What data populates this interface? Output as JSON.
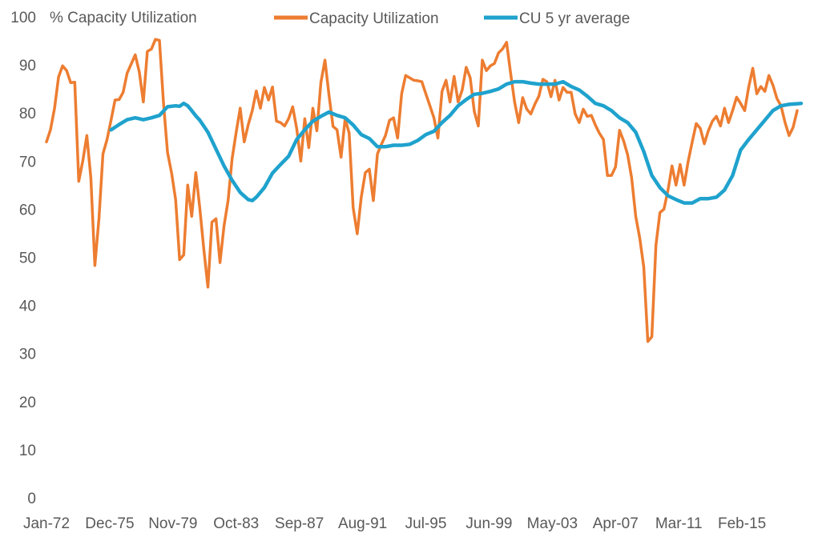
{
  "chart_data": {
    "type": "line",
    "title": "",
    "ylabel": "% Capacity Utilization",
    "xlabel": "",
    "ylim": [
      0,
      100
    ],
    "yticks": [
      0,
      10,
      20,
      30,
      40,
      50,
      60,
      70,
      80,
      90,
      100
    ],
    "xlim": [
      1972.0,
      2018.75
    ],
    "xticks": [
      {
        "label": "Jan-72",
        "x": 1972.0
      },
      {
        "label": "Dec-75",
        "x": 1975.917
      },
      {
        "label": "Nov-79",
        "x": 1979.833
      },
      {
        "label": "Oct-83",
        "x": 1983.75
      },
      {
        "label": "Sep-87",
        "x": 1987.667
      },
      {
        "label": "Aug-91",
        "x": 1991.583
      },
      {
        "label": "Jul-95",
        "x": 1995.5
      },
      {
        "label": "Jun-99",
        "x": 1999.417
      },
      {
        "label": "May-03",
        "x": 2003.333
      },
      {
        "label": "Apr-07",
        "x": 2007.25
      },
      {
        "label": "Mar-11",
        "x": 2011.167
      },
      {
        "label": "Feb-15",
        "x": 2015.083
      }
    ],
    "legend": "top",
    "series": [
      {
        "name": "Capacity Utilization",
        "color": "#ED7D31",
        "points": [
          [
            1972.0,
            74
          ],
          [
            1972.25,
            76.5
          ],
          [
            1972.5,
            81
          ],
          [
            1972.75,
            87.5
          ],
          [
            1973.0,
            89.8
          ],
          [
            1973.25,
            88.8
          ],
          [
            1973.5,
            86.3
          ],
          [
            1973.75,
            86.4
          ],
          [
            1974.0,
            65.8
          ],
          [
            1974.25,
            70
          ],
          [
            1974.5,
            75.3
          ],
          [
            1974.75,
            66.5
          ],
          [
            1975.0,
            48.3
          ],
          [
            1975.25,
            58
          ],
          [
            1975.5,
            71.5
          ],
          [
            1975.75,
            74.5
          ],
          [
            1976.0,
            78.5
          ],
          [
            1976.25,
            82.7
          ],
          [
            1976.5,
            82.8
          ],
          [
            1976.75,
            84.3
          ],
          [
            1977.0,
            88.3
          ],
          [
            1977.25,
            90.2
          ],
          [
            1977.5,
            92.1
          ],
          [
            1977.75,
            88.5
          ],
          [
            1978.0,
            82.3
          ],
          [
            1978.25,
            92.8
          ],
          [
            1978.5,
            93.3
          ],
          [
            1978.75,
            95.3
          ],
          [
            1979.0,
            95.1
          ],
          [
            1979.25,
            82
          ],
          [
            1979.5,
            71.8
          ],
          [
            1979.75,
            67.5
          ],
          [
            1980.0,
            62
          ],
          [
            1980.25,
            49.5
          ],
          [
            1980.5,
            50.5
          ],
          [
            1980.75,
            65
          ],
          [
            1981.0,
            58.5
          ],
          [
            1981.25,
            67.6
          ],
          [
            1981.5,
            60.2
          ],
          [
            1981.75,
            51.5
          ],
          [
            1982.0,
            43.8
          ],
          [
            1982.25,
            57.3
          ],
          [
            1982.5,
            58
          ],
          [
            1982.75,
            48.9
          ],
          [
            1983.0,
            56.5
          ],
          [
            1983.25,
            61.8
          ],
          [
            1983.5,
            70.5
          ],
          [
            1983.75,
            76
          ],
          [
            1984.0,
            81
          ],
          [
            1984.25,
            74
          ],
          [
            1984.5,
            77.6
          ],
          [
            1984.75,
            80.5
          ],
          [
            1985.0,
            84.6
          ],
          [
            1985.25,
            81
          ],
          [
            1985.5,
            85.3
          ],
          [
            1985.75,
            82.7
          ],
          [
            1986.0,
            85.4
          ],
          [
            1986.25,
            78.3
          ],
          [
            1986.5,
            78
          ],
          [
            1986.75,
            77.3
          ],
          [
            1987.0,
            78.8
          ],
          [
            1987.25,
            81.3
          ],
          [
            1987.5,
            76.8
          ],
          [
            1987.75,
            70
          ],
          [
            1988.0,
            78.8
          ],
          [
            1988.25,
            72.8
          ],
          [
            1988.5,
            81
          ],
          [
            1988.75,
            76.3
          ],
          [
            1989.0,
            86.3
          ],
          [
            1989.25,
            91
          ],
          [
            1989.5,
            83.8
          ],
          [
            1989.75,
            77.2
          ],
          [
            1990.0,
            76.5
          ],
          [
            1990.25,
            70.8
          ],
          [
            1990.5,
            78.8
          ],
          [
            1990.75,
            75.8
          ],
          [
            1991.0,
            60.3
          ],
          [
            1991.25,
            54.9
          ],
          [
            1991.5,
            62.5
          ],
          [
            1991.75,
            67.6
          ],
          [
            1992.0,
            68.3
          ],
          [
            1992.25,
            61.8
          ],
          [
            1992.5,
            71.5
          ],
          [
            1992.75,
            73.5
          ],
          [
            1993.0,
            75.3
          ],
          [
            1993.25,
            78.5
          ],
          [
            1993.5,
            79
          ],
          [
            1993.75,
            74.8
          ],
          [
            1994.0,
            84
          ],
          [
            1994.25,
            87.8
          ],
          [
            1994.5,
            87.3
          ],
          [
            1994.75,
            86.8
          ],
          [
            1995.0,
            86.7
          ],
          [
            1995.25,
            86.5
          ],
          [
            1995.5,
            84
          ],
          [
            1995.75,
            81.5
          ],
          [
            1996.0,
            79
          ],
          [
            1996.25,
            74.8
          ],
          [
            1996.5,
            84.5
          ],
          [
            1996.75,
            86.8
          ],
          [
            1997.0,
            82.3
          ],
          [
            1997.25,
            87.6
          ],
          [
            1997.5,
            82.3
          ],
          [
            1997.75,
            84.8
          ],
          [
            1998.0,
            89.5
          ],
          [
            1998.25,
            87.3
          ],
          [
            1998.5,
            80.3
          ],
          [
            1998.75,
            77.3
          ],
          [
            1999.0,
            91
          ],
          [
            1999.25,
            88.8
          ],
          [
            1999.5,
            89.8
          ],
          [
            1999.75,
            90.3
          ],
          [
            2000.0,
            92.5
          ],
          [
            2000.25,
            93.3
          ],
          [
            2000.5,
            94.7
          ],
          [
            2000.75,
            88.3
          ],
          [
            2001.0,
            82.3
          ],
          [
            2001.25,
            78
          ],
          [
            2001.5,
            83.2
          ],
          [
            2001.75,
            80.8
          ],
          [
            2002.0,
            79.8
          ],
          [
            2002.25,
            81.8
          ],
          [
            2002.5,
            83.5
          ],
          [
            2002.75,
            87
          ],
          [
            2003.0,
            86.5
          ],
          [
            2003.25,
            83.4
          ],
          [
            2003.5,
            86.8
          ],
          [
            2003.75,
            82.7
          ],
          [
            2004.0,
            85.3
          ],
          [
            2004.25,
            84.3
          ],
          [
            2004.5,
            84.3
          ],
          [
            2004.75,
            79.8
          ],
          [
            2005.0,
            78
          ],
          [
            2005.25,
            80.8
          ],
          [
            2005.5,
            79.3
          ],
          [
            2005.75,
            79.5
          ],
          [
            2006.0,
            77.5
          ],
          [
            2006.25,
            75.8
          ],
          [
            2006.5,
            74.5
          ],
          [
            2006.75,
            67
          ],
          [
            2007.0,
            67
          ],
          [
            2007.25,
            68.8
          ],
          [
            2007.5,
            76.4
          ],
          [
            2007.75,
            74.2
          ],
          [
            2008.0,
            71.3
          ],
          [
            2008.25,
            66.5
          ],
          [
            2008.5,
            58.5
          ],
          [
            2008.75,
            54
          ],
          [
            2009.0,
            48
          ],
          [
            2009.25,
            32.5
          ],
          [
            2009.5,
            33.5
          ],
          [
            2009.75,
            52.5
          ],
          [
            2010.0,
            59.3
          ],
          [
            2010.25,
            60
          ],
          [
            2010.5,
            64
          ],
          [
            2010.75,
            69
          ],
          [
            2011.0,
            65
          ],
          [
            2011.25,
            69.3
          ],
          [
            2011.5,
            65
          ],
          [
            2011.75,
            70
          ],
          [
            2012.0,
            74
          ],
          [
            2012.25,
            77.8
          ],
          [
            2012.5,
            76.8
          ],
          [
            2012.75,
            73.6
          ],
          [
            2013.0,
            76.3
          ],
          [
            2013.25,
            78.3
          ],
          [
            2013.5,
            79.3
          ],
          [
            2013.75,
            77.3
          ],
          [
            2014.0,
            81
          ],
          [
            2014.25,
            78
          ],
          [
            2014.5,
            80.5
          ],
          [
            2014.75,
            83.3
          ],
          [
            2015.0,
            82
          ],
          [
            2015.25,
            80.5
          ],
          [
            2015.5,
            85.4
          ],
          [
            2015.75,
            89.3
          ],
          [
            2016.0,
            84
          ],
          [
            2016.25,
            85.5
          ],
          [
            2016.5,
            84.5
          ],
          [
            2016.75,
            87.8
          ],
          [
            2017.0,
            85.8
          ],
          [
            2017.25,
            83
          ],
          [
            2017.5,
            81.5
          ],
          [
            2017.75,
            78
          ],
          [
            2018.0,
            75.3
          ],
          [
            2018.25,
            77
          ],
          [
            2018.5,
            80.5
          ]
        ]
      },
      {
        "name": "CU 5 yr average",
        "color": "#1FA2CD",
        "points": [
          [
            1976.0,
            76.5
          ],
          [
            1976.5,
            77.6
          ],
          [
            1977.0,
            78.6
          ],
          [
            1977.5,
            79
          ],
          [
            1978.0,
            78.6
          ],
          [
            1978.5,
            79
          ],
          [
            1979.0,
            79.5
          ],
          [
            1979.5,
            81.3
          ],
          [
            1980.0,
            81.5
          ],
          [
            1980.25,
            81.4
          ],
          [
            1980.5,
            82
          ],
          [
            1980.75,
            81.5
          ],
          [
            1981.0,
            80.5
          ],
          [
            1981.25,
            79.4
          ],
          [
            1981.5,
            78.5
          ],
          [
            1982.0,
            76
          ],
          [
            1982.5,
            72.5
          ],
          [
            1983.0,
            69
          ],
          [
            1983.5,
            66
          ],
          [
            1984.0,
            63.5
          ],
          [
            1984.5,
            62
          ],
          [
            1984.75,
            61.8
          ],
          [
            1985.0,
            62.5
          ],
          [
            1985.5,
            64.5
          ],
          [
            1986.0,
            67.5
          ],
          [
            1986.5,
            69.3
          ],
          [
            1987.0,
            71
          ],
          [
            1987.5,
            74.5
          ],
          [
            1988.0,
            76.5
          ],
          [
            1988.5,
            78.3
          ],
          [
            1989.0,
            79.3
          ],
          [
            1989.5,
            80.2
          ],
          [
            1990.0,
            79.5
          ],
          [
            1990.5,
            79
          ],
          [
            1991.0,
            77.5
          ],
          [
            1991.5,
            75.5
          ],
          [
            1992.0,
            74.7
          ],
          [
            1992.5,
            73
          ],
          [
            1993.0,
            73
          ],
          [
            1993.5,
            73.3
          ],
          [
            1994.0,
            73.3
          ],
          [
            1994.5,
            73.5
          ],
          [
            1995.0,
            74.3
          ],
          [
            1995.5,
            75.5
          ],
          [
            1996.0,
            76.2
          ],
          [
            1996.5,
            78
          ],
          [
            1997.0,
            79.5
          ],
          [
            1997.5,
            81.5
          ],
          [
            1998.0,
            82.8
          ],
          [
            1998.5,
            83.9
          ],
          [
            1999.0,
            84.1
          ],
          [
            1999.5,
            84.5
          ],
          [
            2000.0,
            85
          ],
          [
            2000.5,
            86
          ],
          [
            2001.0,
            86.5
          ],
          [
            2001.5,
            86.5
          ],
          [
            2002.0,
            86.2
          ],
          [
            2002.5,
            86
          ],
          [
            2003.0,
            86
          ],
          [
            2003.5,
            86
          ],
          [
            2004.0,
            86.5
          ],
          [
            2004.5,
            85.5
          ],
          [
            2005.0,
            84.8
          ],
          [
            2005.5,
            83.5
          ],
          [
            2006.0,
            82
          ],
          [
            2006.5,
            81.5
          ],
          [
            2007.0,
            80.5
          ],
          [
            2007.5,
            79
          ],
          [
            2008.0,
            78
          ],
          [
            2008.5,
            76
          ],
          [
            2009.0,
            72
          ],
          [
            2009.5,
            67
          ],
          [
            2010.0,
            64.5
          ],
          [
            2010.5,
            62.8
          ],
          [
            2011.0,
            62
          ],
          [
            2011.5,
            61.3
          ],
          [
            2012.0,
            61.3
          ],
          [
            2012.5,
            62.2
          ],
          [
            2013.0,
            62.2
          ],
          [
            2013.5,
            62.5
          ],
          [
            2014.0,
            64
          ],
          [
            2014.5,
            67
          ],
          [
            2015.0,
            72.3
          ],
          [
            2015.5,
            74.5
          ],
          [
            2016.0,
            76.5
          ],
          [
            2016.5,
            78.5
          ],
          [
            2017.0,
            80.5
          ],
          [
            2017.5,
            81.5
          ],
          [
            2018.0,
            81.8
          ],
          [
            2018.75,
            82
          ]
        ]
      }
    ]
  }
}
